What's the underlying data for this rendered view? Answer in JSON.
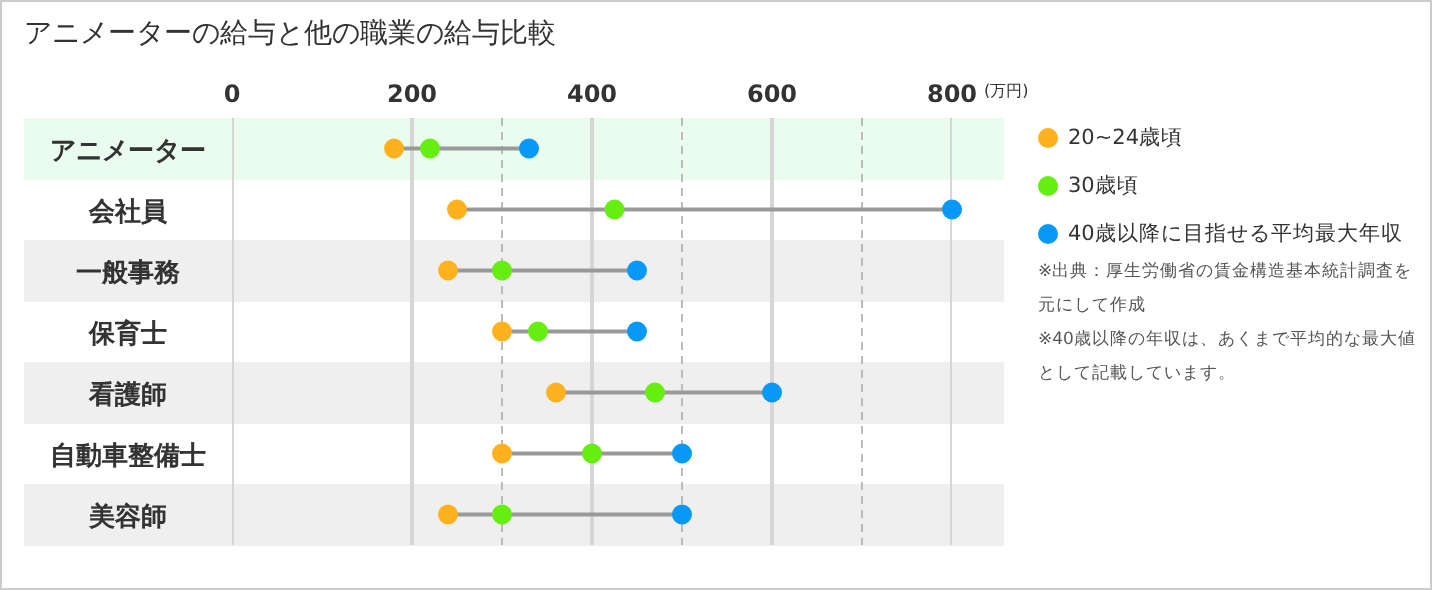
{
  "chart_data": {
    "type": "scatter",
    "title": "アニメーターの給与と他の職業の給与比較",
    "xlabel": "(万円)",
    "categories": [
      "アニメーター",
      "会社員",
      "一般事務",
      "保育士",
      "看護師",
      "自動車整備士",
      "美容師"
    ],
    "series": [
      {
        "name": "20~24歳頃",
        "color": "#ffb21e",
        "values": [
          180,
          250,
          240,
          300,
          360,
          300,
          240
        ]
      },
      {
        "name": "30歳頃",
        "color": "#66ee11",
        "values": [
          220,
          425,
          300,
          340,
          470,
          400,
          300
        ]
      },
      {
        "name": "40歳以降に目指せる平均最大年収",
        "color": "#0899f8",
        "values": [
          330,
          800,
          450,
          450,
          600,
          500,
          500
        ]
      }
    ],
    "xlim": [
      0,
      800
    ],
    "bands": [
      {
        "axis": "y",
        "from": "アニメーター",
        "to": "アニメーター",
        "color": "#e9fcee"
      }
    ],
    "xticks": [
      0,
      200,
      {
        "value": 300,
        "label": null
      },
      400,
      {
        "value": 500,
        "label": null
      },
      600,
      {
        "value": 700,
        "label": null
      },
      800
    ],
    "orientation": "horizontal",
    "grid": "x",
    "legend": "right",
    "marker": "circle",
    "annotations": [
      "※出典：厚生労働省の賃金構造基本統計調査を元にして作成",
      "※40歳以降の年収は、あくまで平均的な最大値として記載しています。"
    ]
  }
}
